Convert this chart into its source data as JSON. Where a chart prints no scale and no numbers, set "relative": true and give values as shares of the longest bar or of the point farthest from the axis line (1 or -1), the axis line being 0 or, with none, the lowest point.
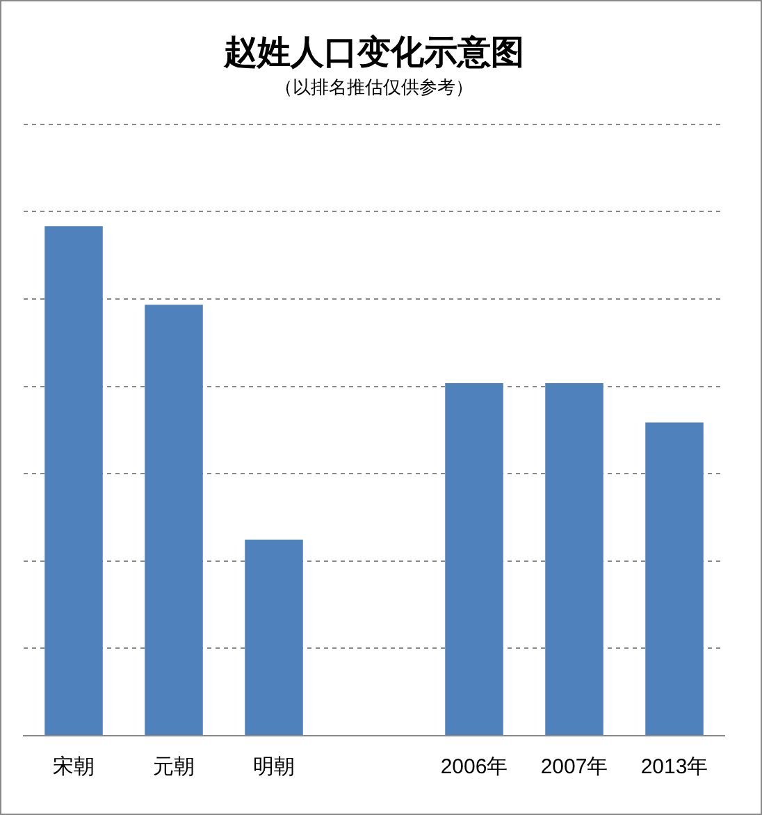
{
  "chart_data": {
    "type": "bar",
    "title": "赵姓人口变化示意图",
    "subtitle": "（以排名推估仅供参考）",
    "categories": [
      "宋朝",
      "元朝",
      "明朝",
      null,
      "2006年",
      "2007年",
      "2013年"
    ],
    "values": [
      1,
      0.846,
      0.385,
      null,
      0.692,
      0.692,
      0.615
    ],
    "color": "#4f81bd",
    "relative": true,
    "grid": "y",
    "legend": false
  }
}
